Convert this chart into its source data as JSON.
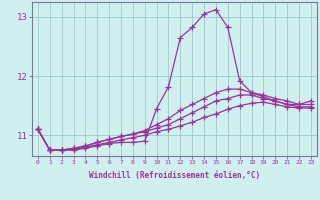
{
  "xlabel": "Windchill (Refroidissement éolien,°C)",
  "ylabel": "",
  "bg_color": "#d0f0f0",
  "line_color": "#993399",
  "grid_color": "#99cccc",
  "xlim": [
    -0.5,
    23.5
  ],
  "ylim": [
    10.65,
    13.25
  ],
  "yticks": [
    11,
    12,
    13
  ],
  "xticks": [
    0,
    1,
    2,
    3,
    4,
    5,
    6,
    7,
    8,
    9,
    10,
    11,
    12,
    13,
    14,
    15,
    16,
    17,
    18,
    19,
    20,
    21,
    22,
    23
  ],
  "series": {
    "line1": [
      11.1,
      10.75,
      10.75,
      10.75,
      10.78,
      10.82,
      10.86,
      10.88,
      10.88,
      10.9,
      11.45,
      11.82,
      12.65,
      12.82,
      13.05,
      13.12,
      12.82,
      11.92,
      11.72,
      11.65,
      11.58,
      11.52,
      11.52,
      11.58
    ],
    "line2": [
      11.1,
      10.75,
      10.75,
      10.78,
      10.82,
      10.88,
      10.93,
      10.98,
      11.02,
      11.08,
      11.18,
      11.28,
      11.42,
      11.52,
      11.62,
      11.72,
      11.78,
      11.78,
      11.72,
      11.68,
      11.62,
      11.58,
      11.52,
      11.52
    ],
    "line3": [
      11.1,
      10.75,
      10.75,
      10.78,
      10.82,
      10.88,
      10.93,
      10.98,
      11.02,
      11.06,
      11.12,
      11.18,
      11.28,
      11.38,
      11.48,
      11.58,
      11.62,
      11.68,
      11.68,
      11.62,
      11.58,
      11.52,
      11.48,
      11.48
    ],
    "line4": [
      11.1,
      10.75,
      10.75,
      10.76,
      10.8,
      10.84,
      10.88,
      10.92,
      10.96,
      11.0,
      11.06,
      11.1,
      11.16,
      11.22,
      11.3,
      11.36,
      11.44,
      11.5,
      11.54,
      11.56,
      11.52,
      11.48,
      11.46,
      11.46
    ]
  },
  "marker": "+",
  "marker_size": 4,
  "linewidth": 0.9
}
